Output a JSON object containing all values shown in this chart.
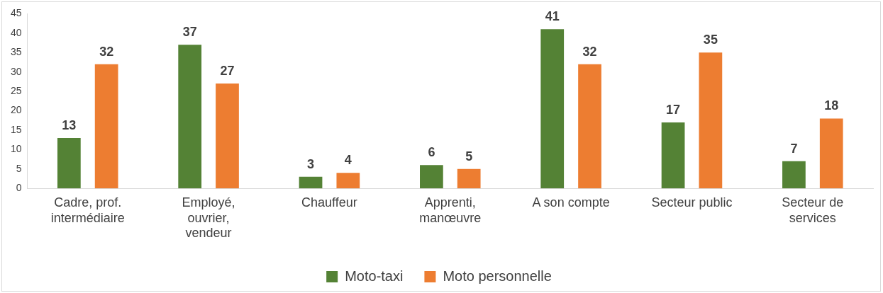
{
  "chart_data": {
    "type": "bar",
    "categories": [
      "Cadre, prof. intermédiaire",
      "Employé, ouvrier, vendeur",
      "Chauffeur",
      "Apprenti, manœuvre",
      "A son compte",
      "Secteur public",
      "Secteur de services"
    ],
    "series": [
      {
        "name": "Moto-taxi",
        "color": "#548235",
        "values": [
          13,
          37,
          3,
          6,
          41,
          17,
          7
        ]
      },
      {
        "name": "Moto personnelle",
        "color": "#ed7d31",
        "values": [
          32,
          27,
          4,
          5,
          32,
          35,
          18
        ]
      }
    ],
    "ylim": [
      0,
      45
    ],
    "yticks": [
      0,
      5,
      10,
      15,
      20,
      25,
      30,
      35,
      40,
      45
    ],
    "grid": false,
    "legend": "bottom",
    "data_labels": true
  }
}
